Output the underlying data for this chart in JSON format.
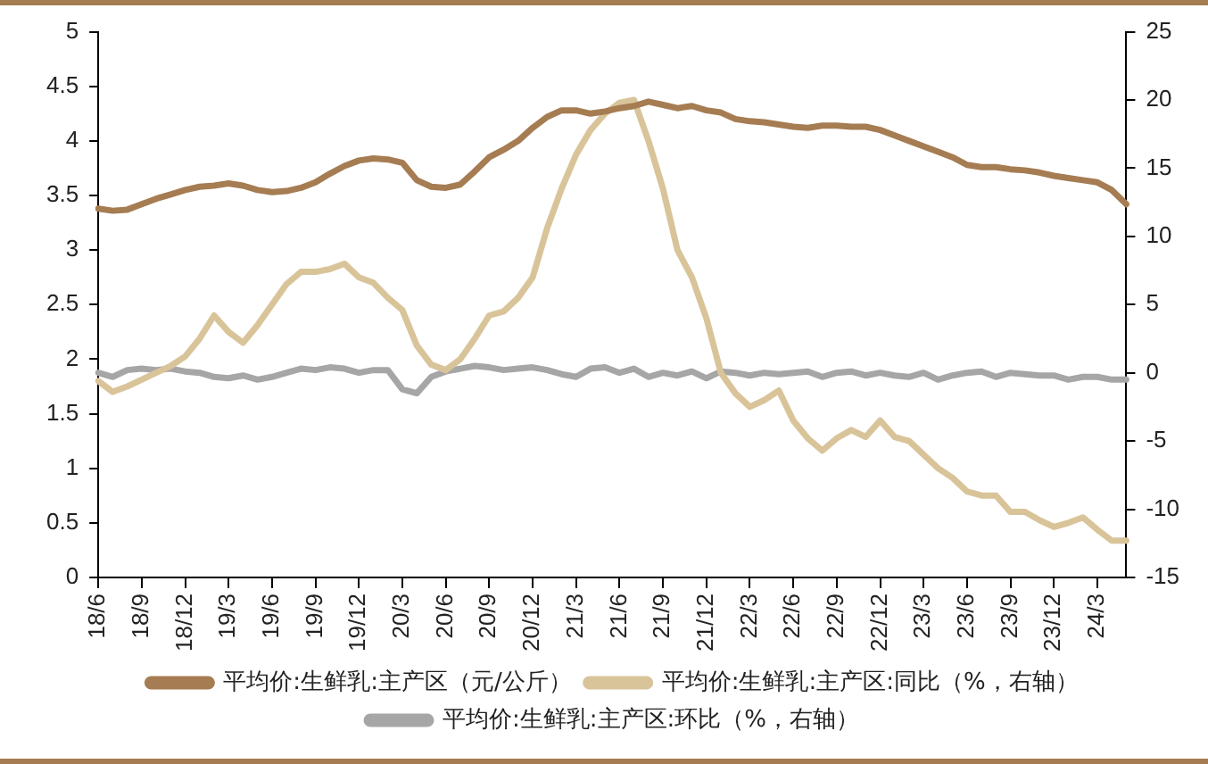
{
  "chart_data": {
    "type": "line",
    "categories": [
      "18/6",
      null,
      null,
      "18/9",
      null,
      null,
      "18/12",
      null,
      null,
      "19/3",
      null,
      null,
      "19/6",
      null,
      null,
      "19/9",
      null,
      null,
      "19/12",
      null,
      null,
      "20/3",
      null,
      null,
      "20/6",
      null,
      null,
      "20/9",
      null,
      null,
      "20/12",
      null,
      null,
      "21/3",
      null,
      null,
      "21/6",
      null,
      null,
      "21/9",
      null,
      null,
      "21/12",
      null,
      null,
      "22/3",
      null,
      null,
      "22/6",
      null,
      null,
      "22/9",
      null,
      null,
      "22/12",
      null,
      null,
      "23/3",
      null,
      null,
      "23/6",
      null,
      null,
      "23/9",
      null,
      null,
      "23/12",
      null,
      null,
      "24/3",
      null,
      null
    ],
    "series": [
      {
        "name": "平均价:生鲜乳:主产区（元/公斤）",
        "color": "#a67c52",
        "values": [
          3.38,
          3.36,
          3.37,
          3.42,
          3.47,
          3.51,
          3.55,
          3.58,
          3.59,
          3.61,
          3.59,
          3.55,
          3.53,
          3.54,
          3.57,
          3.62,
          3.7,
          3.77,
          3.82,
          3.84,
          3.83,
          3.8,
          3.64,
          3.58,
          3.57,
          3.6,
          3.72,
          3.85,
          3.92,
          4.0,
          4.12,
          4.22,
          4.28,
          4.28,
          4.25,
          4.27,
          4.3,
          4.32,
          4.36,
          4.33,
          4.3,
          4.32,
          4.28,
          4.26,
          4.2,
          4.18,
          4.17,
          4.15,
          4.13,
          4.12,
          4.14,
          4.14,
          4.13,
          4.13,
          4.1,
          4.05,
          4.0,
          3.95,
          3.9,
          3.85,
          3.78,
          3.76,
          3.76,
          3.74,
          3.73,
          3.71,
          3.68,
          3.66,
          3.64,
          3.62,
          3.55,
          3.42
        ]
      },
      {
        "name": "平均价:生鲜乳:主产区:同比（%，右轴）",
        "color": "#d9c49a",
        "axis": "y2",
        "values": [
          -0.6,
          -1.4,
          -1,
          -0.5,
          0,
          0.5,
          1.2,
          2.5,
          4.2,
          3,
          2.2,
          3.5,
          5,
          6.5,
          7.4,
          7.4,
          7.6,
          8,
          7,
          6.6,
          5.5,
          4.6,
          2,
          0.6,
          0.2,
          1,
          2.5,
          4.2,
          4.5,
          5.5,
          7,
          10.6,
          13.5,
          16,
          17.8,
          19,
          19.8,
          20,
          17,
          13.5,
          9,
          7,
          4,
          0,
          -1.5,
          -2.5,
          -2,
          -1.3,
          -3.5,
          -4.8,
          -5.7,
          -4.8,
          -4.2,
          -4.7,
          -3.5,
          -4.7,
          -5,
          -6,
          -7,
          -7.7,
          -8.7,
          -9,
          -9,
          -10.2,
          -10.2,
          -10.8,
          -11.3,
          -11,
          -10.6,
          -11.5,
          -12.3,
          -12.3
        ]
      },
      {
        "name": "平均价:生鲜乳:主产区:环比（%，右轴）",
        "color": "#a6a6a6",
        "axis": "y2",
        "values": [
          0,
          -0.3,
          0.2,
          0.3,
          0.2,
          0.3,
          0.1,
          0,
          -0.3,
          -0.4,
          -0.2,
          -0.5,
          -0.3,
          0,
          0.3,
          0.2,
          0.4,
          0.3,
          0,
          0.2,
          0.2,
          -1.2,
          -1.5,
          -0.3,
          0.1,
          0.3,
          0.5,
          0.4,
          0.2,
          0.3,
          0.4,
          0.2,
          -0.1,
          -0.3,
          0.3,
          0.4,
          0,
          0.3,
          -0.3,
          0,
          -0.2,
          0.1,
          -0.4,
          0.1,
          0,
          -0.2,
          0,
          -0.1,
          0,
          0.1,
          -0.3,
          0,
          0.1,
          -0.2,
          0,
          -0.2,
          -0.3,
          0,
          -0.5,
          -0.2,
          0,
          0.1,
          -0.3,
          0,
          -0.1,
          -0.2,
          -0.2,
          -0.5,
          -0.3,
          -0.3,
          -0.5,
          -0.5
        ]
      }
    ],
    "ylim": [
      0,
      5
    ],
    "yticks": [
      0,
      0.5,
      1,
      1.5,
      2,
      2.5,
      3,
      3.5,
      4,
      4.5,
      5
    ],
    "y2lim": [
      -15,
      25
    ],
    "y2ticks": [
      -15,
      -10,
      -5,
      0,
      5,
      10,
      15,
      20,
      25
    ],
    "grid": false,
    "legend": "bottom",
    "marker": "none",
    "line_style": "solid"
  }
}
